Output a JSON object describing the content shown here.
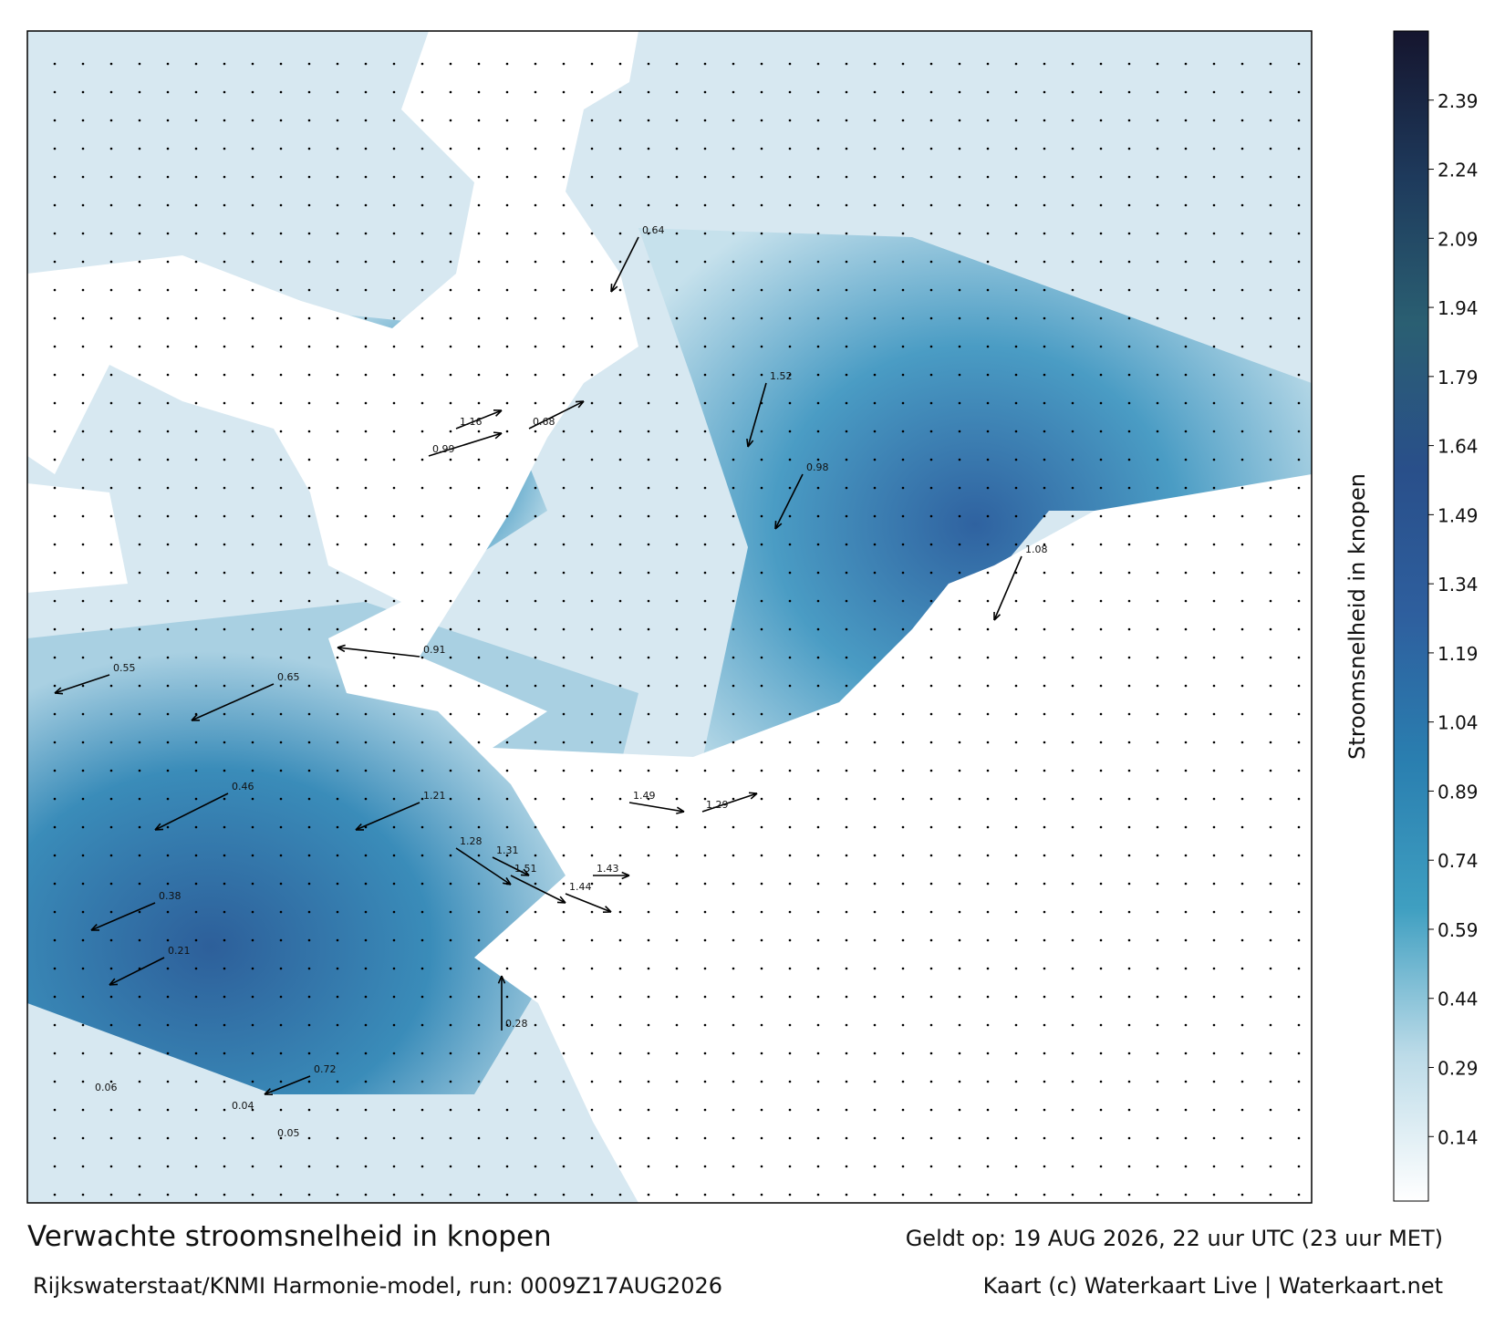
{
  "chart_data": {
    "type": "map",
    "title": "Verwachte stroomsnelheid in knopen",
    "subtitle": "Rijkswaterstaat/KNMI Harmonie-model, run: 0009Z17AUG2026",
    "valid_time": "Geldt op: 19 AUG 2026, 22 uur UTC (23 uur MET)",
    "credit": "Kaart (c) Waterkaart Live | Waterkaart.net",
    "colorbar_label": "Stroomsnelheid in knopen",
    "clim": [
      0,
      2.54
    ],
    "colorbar_ticks": [
      0.14,
      0.29,
      0.44,
      0.59,
      0.74,
      0.89,
      1.04,
      1.19,
      1.34,
      1.49,
      1.64,
      1.79,
      1.94,
      2.09,
      2.24,
      2.39
    ],
    "colormap": [
      "#ffffff",
      "#bcdbe8",
      "#3f9fc1",
      "#2a7fb0",
      "#2e5f9e",
      "#294f8a",
      "#2a5f72",
      "#1e3a5c",
      "#15152e"
    ],
    "current_labels": [
      "0.99",
      "1.16",
      "0.68",
      "1.52",
      "0.98",
      "1.08",
      "0.91",
      "1.21",
      "1.28",
      "1.31",
      "1.51",
      "1.44",
      "1.43",
      "1.49",
      "1.29",
      "0.64",
      "0.65",
      "0.46",
      "0.38",
      "0.21",
      "0.06",
      "0.05",
      "0.04",
      "0.28",
      "0.72",
      "0.55"
    ]
  }
}
